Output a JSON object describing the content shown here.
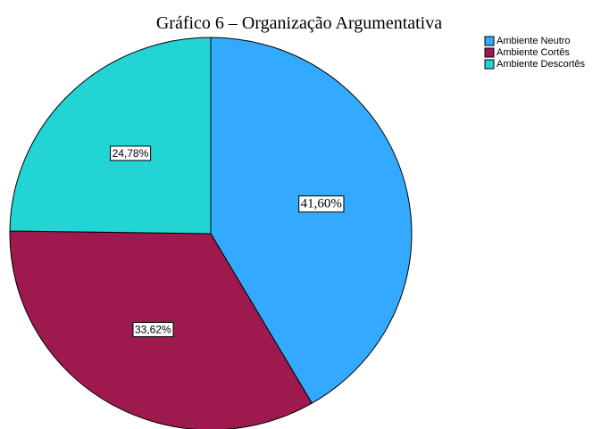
{
  "chart_data": {
    "type": "pie",
    "title": "Gráfico 6 – Organização Argumentativa",
    "categories": [
      "Ambiente Neutro",
      "Ambiente Cortês",
      "Ambiente Descortês"
    ],
    "values": [
      41.6,
      33.62,
      24.78
    ],
    "value_labels": [
      "41,60%",
      "33,62%",
      "24,78%"
    ],
    "colors": [
      "#33aaff",
      "#9e1a4e",
      "#22d4d4"
    ],
    "legend": "top-right"
  }
}
